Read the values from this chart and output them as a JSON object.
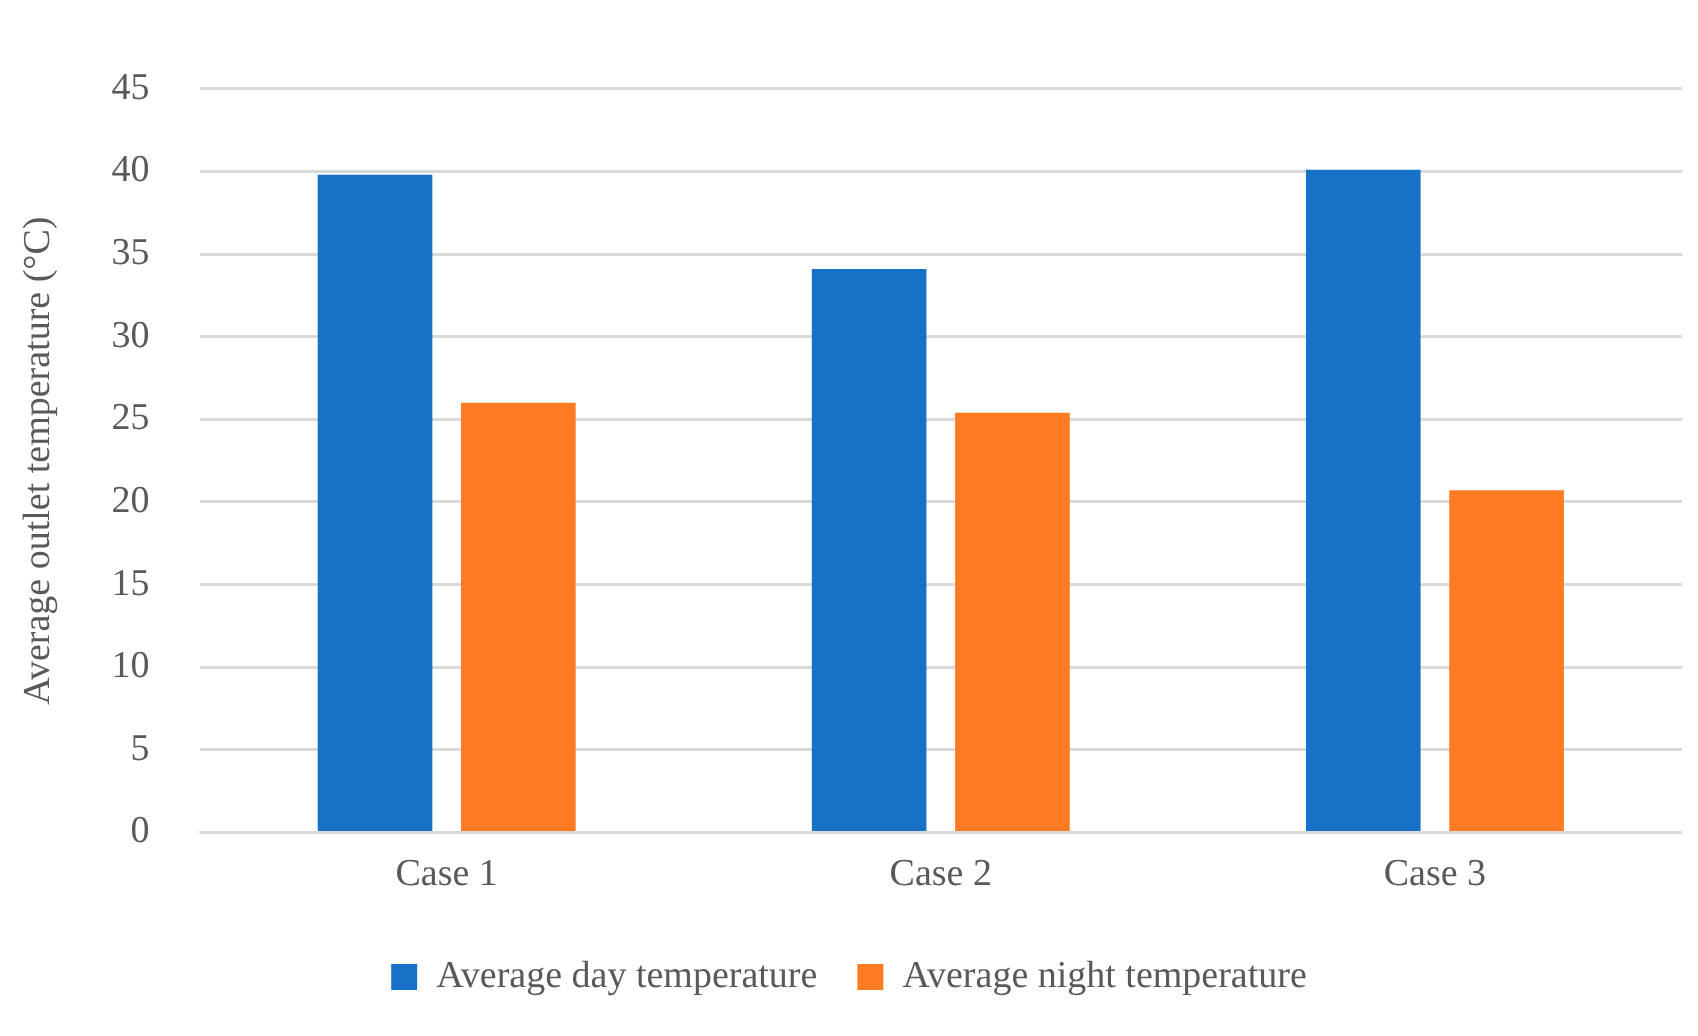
{
  "chart_data": {
    "type": "bar",
    "ylabel": "Average outlet temperature (°C)",
    "categories": [
      "Case 1",
      "Case 2",
      "Case 3"
    ],
    "series": [
      {
        "name": "Average day temperature",
        "color": "#1771c6",
        "values": [
          39.8,
          34.1,
          40.1
        ]
      },
      {
        "name": "Average night temperature",
        "color": "#fe7b23",
        "values": [
          26.0,
          25.4,
          20.7
        ]
      }
    ],
    "ylim": [
      0,
      45
    ],
    "yticks": [
      0,
      5,
      10,
      15,
      20,
      25,
      30,
      35,
      40,
      45
    ],
    "grid": "y",
    "legend": "bottom"
  }
}
